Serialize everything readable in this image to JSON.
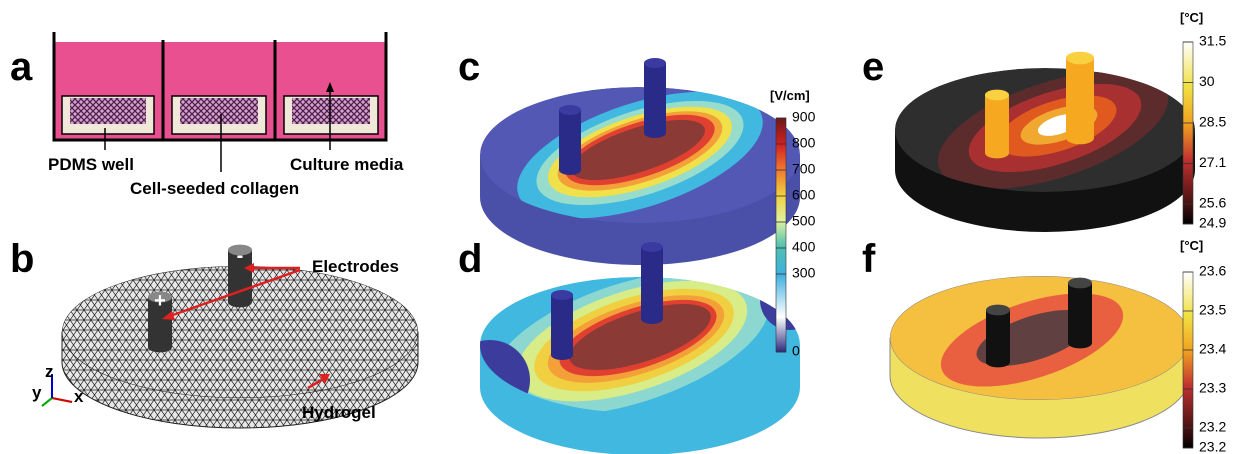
{
  "panels": {
    "a": {
      "label": "a",
      "annotations": [
        "PDMS well",
        "Cell-seeded collagen",
        "Culture media"
      ]
    },
    "b": {
      "label": "b",
      "annotations": [
        "Electrodes",
        "Hydrogel"
      ],
      "electrode_signs": [
        "+",
        "-"
      ],
      "axes": [
        "y",
        "z",
        "x"
      ]
    },
    "c": {
      "label": "c"
    },
    "d": {
      "label": "d"
    },
    "e": {
      "label": "e"
    },
    "f": {
      "label": "f"
    }
  },
  "colorbars": [
    {
      "unit": "[V/cm]",
      "ticks": [
        "900",
        "800",
        "700",
        "600",
        "500",
        "400",
        "300",
        "0"
      ]
    },
    {
      "unit": "[°C]",
      "ticks": [
        "31.5",
        "30",
        "28.5",
        "27.1",
        "25.6",
        "24.9"
      ]
    },
    {
      "unit": "[°C]",
      "ticks": [
        "23.6",
        "23.5",
        "23.4",
        "23.3",
        "23.2",
        "23.2"
      ]
    }
  ]
}
